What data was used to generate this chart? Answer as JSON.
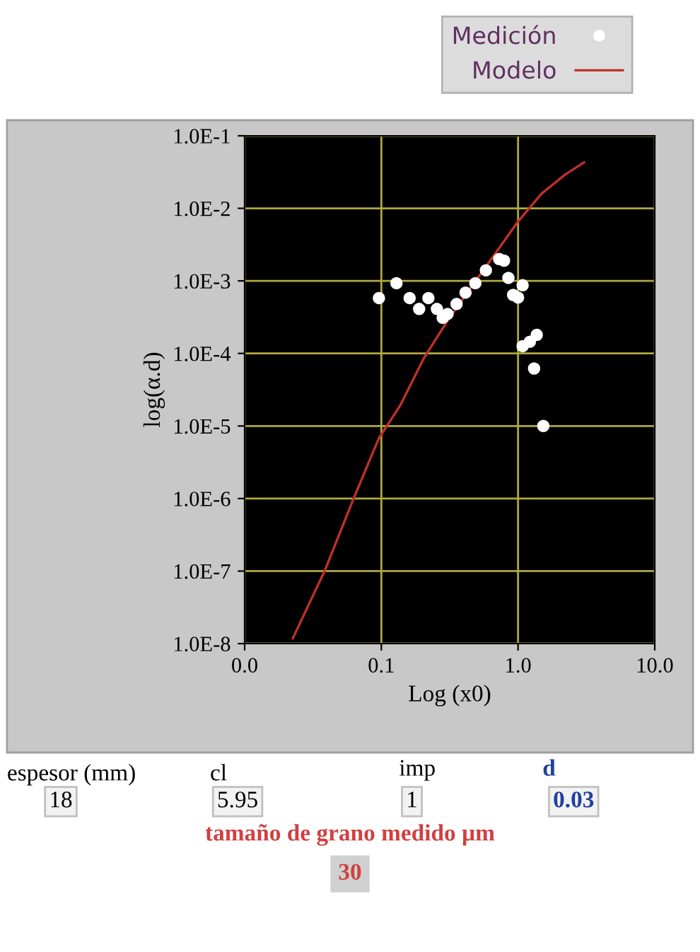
{
  "chart_data": {
    "type": "scatter",
    "xlabel": "Log (x0)",
    "ylabel": "log(α.d)",
    "log": "xy",
    "xlim": [
      0.01,
      10
    ],
    "xticks": [
      {
        "value": 0.01,
        "label": "0.0"
      },
      {
        "value": 0.1,
        "label": "0.1"
      },
      {
        "value": 1,
        "label": "1.0"
      },
      {
        "value": 10,
        "label": "10.0"
      }
    ],
    "ylim": [
      1e-08,
      0.1
    ],
    "yticks": [
      {
        "value": 1e-08,
        "label": "1.0E-8"
      },
      {
        "value": 1e-07,
        "label": "1.0E-7"
      },
      {
        "value": 1e-06,
        "label": "1.0E-6"
      },
      {
        "value": 1e-05,
        "label": "1.0E-5"
      },
      {
        "value": 0.0001,
        "label": "1.0E-4"
      },
      {
        "value": 0.001,
        "label": "1.0E-3"
      },
      {
        "value": 0.01,
        "label": "1.0E-2"
      },
      {
        "value": 0.1,
        "label": "1.0E-1"
      }
    ],
    "grid": true,
    "legend": "top right",
    "series": [
      {
        "name": "Medición",
        "marker": "circle",
        "color": "#ffffff",
        "x": [
          0.096,
          0.129,
          0.161,
          0.189,
          0.221,
          0.255,
          0.281,
          0.305,
          0.355,
          0.413,
          0.487,
          0.582,
          0.728,
          0.79,
          0.85,
          0.92,
          1.0,
          1.08,
          1.08,
          1.22,
          1.37,
          1.31,
          1.53
        ],
        "values": [
          0.00058,
          0.00093,
          0.00058,
          0.00041,
          0.00058,
          0.00041,
          0.00031,
          0.00035,
          0.00048,
          0.00069,
          0.00093,
          0.0014,
          0.002,
          0.0019,
          0.0011,
          0.00064,
          0.00059,
          0.00087,
          0.000126,
          0.000145,
          0.00018,
          6.2e-05,
          1e-05
        ]
      },
      {
        "name": "Modelo",
        "type": "line",
        "marker": "none",
        "line_style": "solid",
        "color": "#c0302a",
        "x": [
          0.0225,
          0.0386,
          0.062,
          0.096,
          0.137,
          0.204,
          0.304,
          0.452,
          0.673,
          1.0,
          1.49,
          2.2,
          3.04
        ],
        "values": [
          1.18e-08,
          1.02e-07,
          9.5e-07,
          6.8e-06,
          1.9e-05,
          8.5e-05,
          0.00028,
          0.00081,
          0.0023,
          0.0066,
          0.016,
          0.029,
          0.043
        ]
      }
    ],
    "annotations": [
      "espesor (mm)",
      "18",
      "cl",
      "5.95",
      "imp",
      "1",
      "d",
      "0.03",
      "tamaño de grano medido µm",
      "30"
    ]
  }
}
